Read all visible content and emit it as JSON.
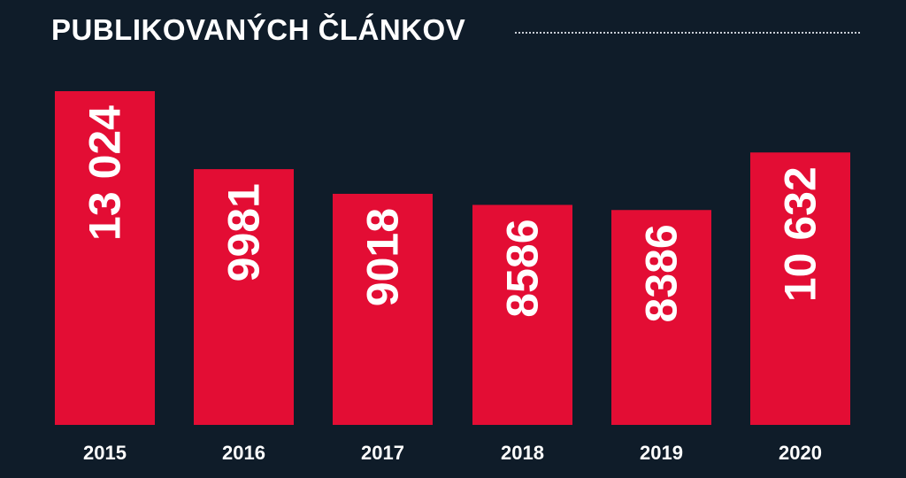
{
  "chart_data": {
    "type": "bar",
    "title": "PUBLIKOVANÝCH ČLÁNKOV",
    "categories": [
      "2015",
      "2016",
      "2017",
      "2018",
      "2019",
      "2020"
    ],
    "values": [
      13024,
      9981,
      9018,
      8586,
      8386,
      10632
    ],
    "value_labels": [
      "13 024",
      "9981",
      "9018",
      "8586",
      "8386",
      "10 632"
    ],
    "xlabel": "",
    "ylabel": "",
    "grid": false,
    "legend": "none",
    "colors": {
      "background": "#0f1c29",
      "bar": "#e30d34",
      "text": "#ffffff",
      "rule": "#c8ced6"
    }
  }
}
